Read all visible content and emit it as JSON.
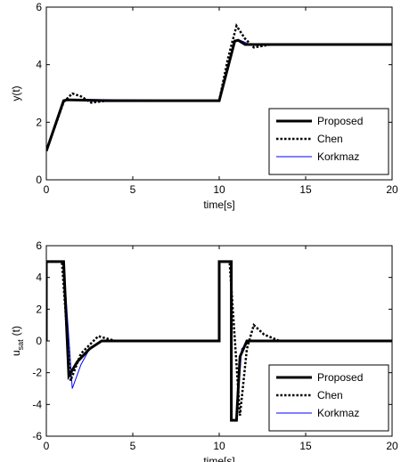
{
  "chart_data": [
    {
      "type": "line",
      "xlabel": "time[s]",
      "ylabel": "y(t)",
      "xlim": [
        0,
        20
      ],
      "ylim": [
        0,
        6
      ],
      "xticks": [
        0,
        5,
        10,
        15,
        20
      ],
      "yticks": [
        0,
        2,
        4,
        6
      ],
      "legend": "lower right",
      "series": [
        {
          "name": "Proposed",
          "color": "#000000",
          "linewidth": 3,
          "dash": "solid",
          "x": [
            0,
            1,
            1.2,
            3.5,
            10,
            10.9,
            11.1,
            11.5,
            20
          ],
          "values": [
            1,
            2.75,
            2.78,
            2.75,
            2.75,
            4.82,
            4.85,
            4.7,
            4.7
          ]
        },
        {
          "name": "Chen",
          "color": "#000000",
          "linewidth": 2.5,
          "dash": "dotted",
          "x": [
            0,
            1,
            1.5,
            2,
            2.6,
            3.5,
            10,
            10.5,
            11,
            11.5,
            12,
            13,
            20
          ],
          "values": [
            1,
            2.7,
            3.0,
            2.9,
            2.68,
            2.75,
            2.75,
            4.2,
            5.35,
            4.9,
            4.6,
            4.7,
            4.7
          ]
        },
        {
          "name": "Korkmaz",
          "color": "#0000ff",
          "linewidth": 1,
          "dash": "solid",
          "x": [
            0,
            1,
            1.3,
            10,
            10.9,
            11.2,
            11.8,
            20
          ],
          "values": [
            1,
            2.75,
            2.8,
            2.75,
            4.8,
            4.85,
            4.7,
            4.7
          ]
        }
      ]
    },
    {
      "type": "line",
      "xlabel": "time[s]",
      "ylabel": "u",
      "ylabel_sub": "sat",
      "ylabel_suffix": "(t)",
      "xlim": [
        0,
        20
      ],
      "ylim": [
        -6,
        6
      ],
      "xticks": [
        0,
        5,
        10,
        15,
        20
      ],
      "yticks": [
        -6,
        -4,
        -2,
        0,
        2,
        4,
        6
      ],
      "legend": "lower right",
      "series": [
        {
          "name": "Proposed",
          "color": "#000000",
          "linewidth": 3,
          "dash": "solid",
          "x": [
            0,
            0,
            1,
            1.3,
            1.8,
            2.5,
            3.2,
            10,
            10,
            10.7,
            10.7,
            11,
            11.2,
            11.6,
            20
          ],
          "values": [
            0,
            5,
            5,
            -2.2,
            -1.3,
            -0.5,
            0,
            0,
            5,
            5,
            -5,
            -5,
            -1,
            0,
            0
          ]
        },
        {
          "name": "Chen",
          "color": "#000000",
          "linewidth": 2.5,
          "dash": "dotted",
          "x": [
            0,
            0,
            0.9,
            1.4,
            2,
            3,
            4,
            10,
            10,
            10.6,
            11.2,
            11.6,
            12,
            12.6,
            13.5,
            20
          ],
          "values": [
            0,
            5,
            5,
            -2.5,
            -0.8,
            0.3,
            0,
            0,
            5,
            5,
            -4.7,
            -0.5,
            1.0,
            0.4,
            0,
            0
          ]
        },
        {
          "name": "Korkmaz",
          "color": "#0000ff",
          "linewidth": 1,
          "dash": "solid",
          "x": [
            0,
            0,
            1,
            1.5,
            2,
            2.5,
            3.2,
            10,
            10,
            10.7,
            10.7,
            11,
            11.3,
            11.8,
            20
          ],
          "values": [
            0,
            5,
            5,
            -3.0,
            -1.5,
            -0.5,
            0,
            0,
            5,
            5,
            -5,
            -5,
            -0.5,
            0,
            0
          ]
        }
      ]
    }
  ]
}
